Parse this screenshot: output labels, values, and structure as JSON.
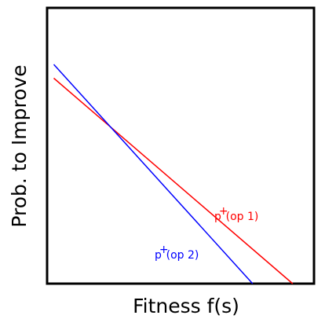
{
  "chart_data": {
    "type": "line",
    "title": "",
    "xlabel": "Fitness f(s)",
    "ylabel": "Prob. to Improve",
    "xlim": [
      0,
      1
    ],
    "ylim": [
      0,
      1
    ],
    "grid": false,
    "xticks": [],
    "yticks": [],
    "series": [
      {
        "key": "op1",
        "label_base": "p",
        "label_sup": "+",
        "label_rest": "(op 1)",
        "color": "#ff0000",
        "x": [
          0.025,
          0.92
        ],
        "y": [
          0.745,
          0.0
        ]
      },
      {
        "key": "op2",
        "label_base": "p",
        "label_sup": "+",
        "label_rest": "(op 2)",
        "color": "#0000ff",
        "x": [
          0.025,
          0.77
        ],
        "y": [
          0.795,
          0.0
        ]
      }
    ]
  }
}
